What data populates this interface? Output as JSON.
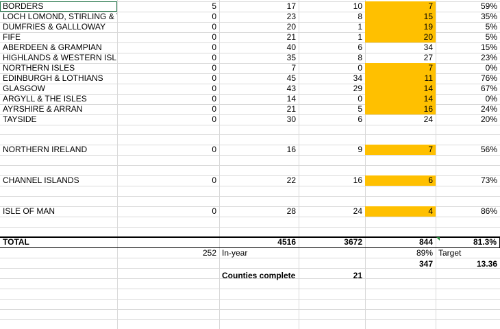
{
  "rows": [
    {
      "name": "BORDERS",
      "c2": "5",
      "c3": "17",
      "c4": "10",
      "c5": "7",
      "c6": "59%",
      "hl": true
    },
    {
      "name": "LOCH LOMOND, STIRLING & T",
      "c2": "0",
      "c3": "23",
      "c4": "8",
      "c5": "15",
      "c6": "35%",
      "hl": true
    },
    {
      "name": "DUMFRIES & GALLLOWAY",
      "c2": "0",
      "c3": "20",
      "c4": "1",
      "c5": "19",
      "c6": "5%",
      "hl": true
    },
    {
      "name": "FIFE",
      "c2": "0",
      "c3": "21",
      "c4": "1",
      "c5": "20",
      "c6": "5%",
      "hl": true
    },
    {
      "name": "ABERDEEN & GRAMPIAN",
      "c2": "0",
      "c3": "40",
      "c4": "6",
      "c5": "34",
      "c6": "15%",
      "hl": false
    },
    {
      "name": "HIGHLANDS & WESTERN ISL",
      "c2": "0",
      "c3": "35",
      "c4": "8",
      "c5": "27",
      "c6": "23%",
      "hl": false
    },
    {
      "name": "NORTHERN ISLES",
      "c2": "0",
      "c3": "7",
      "c4": "0",
      "c5": "7",
      "c6": "0%",
      "hl": true
    },
    {
      "name": "EDINBURGH & LOTHIANS",
      "c2": "0",
      "c3": "45",
      "c4": "34",
      "c5": "11",
      "c6": "76%",
      "hl": true
    },
    {
      "name": "GLASGOW",
      "c2": "0",
      "c3": "43",
      "c4": "29",
      "c5": "14",
      "c6": "67%",
      "hl": true
    },
    {
      "name": "ARGYLL & THE ISLES",
      "c2": "0",
      "c3": "14",
      "c4": "0",
      "c5": "14",
      "c6": "0%",
      "hl": true
    },
    {
      "name": "AYRSHIRE & ARRAN",
      "c2": "0",
      "c3": "21",
      "c4": "5",
      "c5": "16",
      "c6": "24%",
      "hl": true
    },
    {
      "name": "TAYSIDE",
      "c2": "0",
      "c3": "30",
      "c4": "6",
      "c5": "24",
      "c6": "20%",
      "hl": false
    }
  ],
  "groups": [
    {
      "name": "NORTHERN IRELAND",
      "c2": "0",
      "c3": "16",
      "c4": "9",
      "c5": "7",
      "c6": "56%"
    },
    {
      "name": "CHANNEL ISLANDS",
      "c2": "0",
      "c3": "22",
      "c4": "16",
      "c5": "6",
      "c6": "73%"
    },
    {
      "name": "ISLE OF MAN",
      "c2": "0",
      "c3": "28",
      "c4": "24",
      "c5": "4",
      "c6": "86%"
    }
  ],
  "total": {
    "label": "TOTAL",
    "c3": "4516",
    "c4": "3672",
    "c5": "844",
    "c6": "81.3%"
  },
  "inyear": {
    "value": "252",
    "label": "In-year",
    "pct": "89%",
    "target_label": "Target"
  },
  "row3": {
    "c5": "347",
    "c6": "13.36"
  },
  "counties": {
    "label": "Counties complete",
    "value": "21"
  }
}
